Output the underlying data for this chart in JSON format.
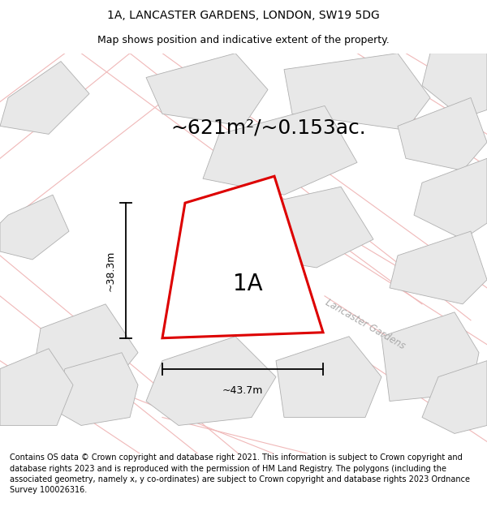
{
  "title_line1": "1A, LANCASTER GARDENS, LONDON, SW19 5DG",
  "title_line2": "Map shows position and indicative extent of the property.",
  "area_text": "~621m²/~0.153ac.",
  "label_1a": "1A",
  "dim_width": "~43.7m",
  "dim_height": "~38.3m",
  "road_label": "Lancaster Gardens",
  "footer_text": "Contains OS data © Crown copyright and database right 2021. This information is subject to Crown copyright and database rights 2023 and is reproduced with the permission of HM Land Registry. The polygons (including the associated geometry, namely x, y co-ordinates) are subject to Crown copyright and database rights 2023 Ordnance Survey 100026316.",
  "bg_color": "#ffffff",
  "block_color": "#e8e8e8",
  "block_edge": "#b0b0b0",
  "red_color": "#dd0000",
  "pink_road": "#f0b8b8",
  "road_label_color": "#aaaaaa",
  "title_fontsize": 10,
  "subtitle_fontsize": 9,
  "area_fontsize": 18,
  "label_fontsize": 20,
  "dim_fontsize": 9,
  "footer_fontsize": 7
}
